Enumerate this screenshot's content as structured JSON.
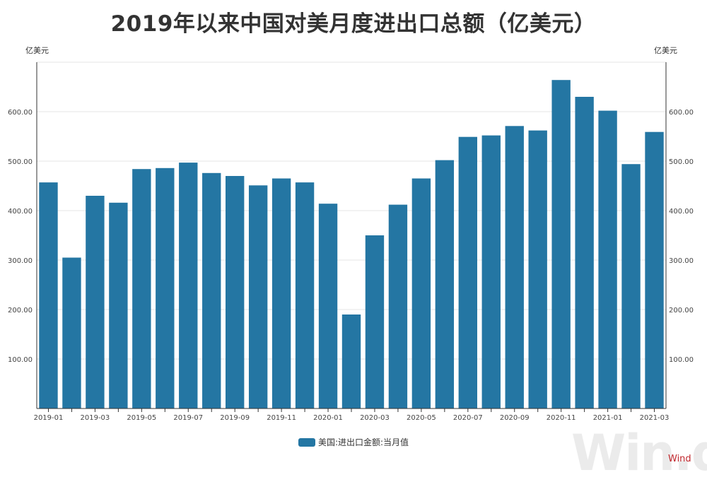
{
  "colors": {
    "bar": "#2476a3",
    "grid": "#e6e6e6",
    "axis": "#333333",
    "brand": "#c0262c"
  },
  "watermark": "Win.d",
  "brand": "Wind",
  "chart_data": {
    "type": "bar",
    "title": "2019年以来中国对美月度进出口总额（亿美元）",
    "unit_left": "亿美元",
    "unit_right": "亿美元",
    "categories": [
      "2019-01",
      "2019-02",
      "2019-03",
      "2019-04",
      "2019-05",
      "2019-06",
      "2019-07",
      "2019-08",
      "2019-09",
      "2019-10",
      "2019-11",
      "2019-12",
      "2020-01",
      "2020-02",
      "2020-03",
      "2020-04",
      "2020-05",
      "2020-06",
      "2020-07",
      "2020-08",
      "2020-09",
      "2020-10",
      "2020-11",
      "2020-12",
      "2021-01",
      "2021-02",
      "2021-03"
    ],
    "x_tick_labels": [
      "2019-01",
      "",
      "2019-03",
      "",
      "2019-05",
      "",
      "2019-07",
      "",
      "2019-09",
      "",
      "2019-11",
      "",
      "2020-01",
      "",
      "2020-03",
      "",
      "2020-05",
      "",
      "2020-07",
      "",
      "2020-09",
      "",
      "2020-11",
      "",
      "2021-01",
      "",
      "2021-03"
    ],
    "series": [
      {
        "name": "美国:进出口金额:当月值",
        "values": [
          457,
          305,
          430,
          416,
          484,
          486,
          497,
          476,
          470,
          451,
          465,
          457,
          414,
          190,
          350,
          412,
          465,
          502,
          549,
          552,
          571,
          562,
          664,
          630,
          602,
          494,
          559
        ]
      }
    ],
    "ylim": [
      0,
      700
    ],
    "y_ticks": [
      100,
      200,
      300,
      400,
      500,
      600
    ],
    "y_tick_labels": [
      "100.00",
      "200.00",
      "300.00",
      "400.00",
      "500.00",
      "600.00"
    ],
    "grid": true,
    "legend_position": "bottom-center"
  }
}
